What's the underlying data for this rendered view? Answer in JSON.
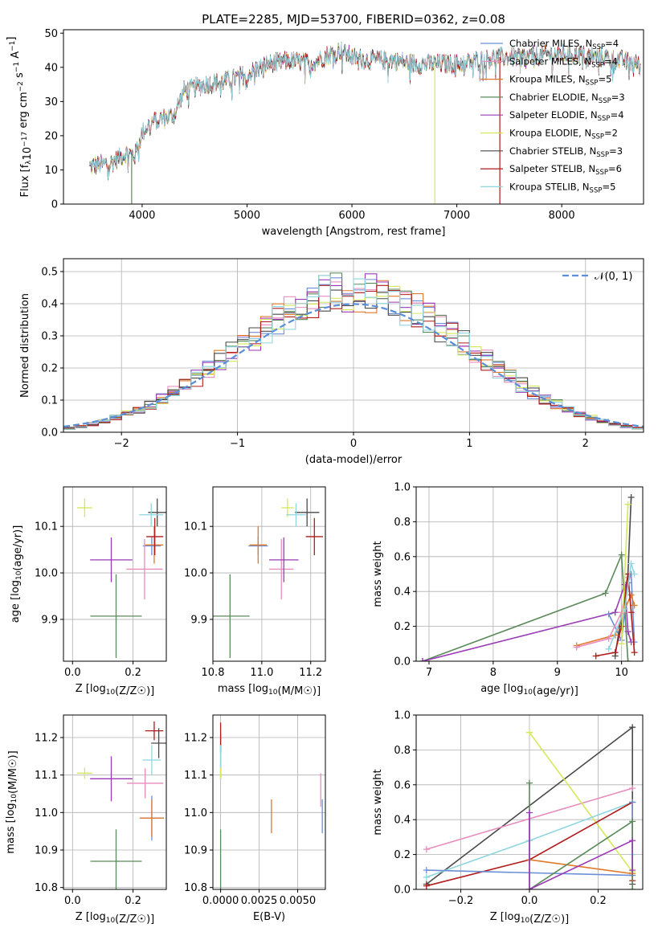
{
  "figure_title": "PLATE=2285, MJD=53700, FIBERID=0362, z=0.08",
  "colors": {
    "Chabrier MILES": "#6a8fd8",
    "Salpeter MILES": "#e88cbe",
    "Kroupa MILES": "#e0792a",
    "Chabrier ELODIE": "#5a8a5a",
    "Salpeter ELODIE": "#9a3ab8",
    "Kroupa ELODIE": "#d4e85a",
    "Chabrier STELIB": "#4a4a4a",
    "Salpeter STELIB": "#b01c1c",
    "Kroupa STELIB": "#8fd6e0"
  },
  "chart_data": [
    {
      "id": "spectrum",
      "type": "line",
      "xlabel": "wavelength [Angstrom, rest frame]",
      "ylabel": "Flux [f_λ10^-17 erg cm^-2 s^-1 A^-1]",
      "xlim": [
        3250,
        8780
      ],
      "ylim": [
        0,
        51
      ],
      "xticks": [
        4000,
        5000,
        6000,
        7000,
        8000
      ],
      "yticks": [
        0,
        10,
        20,
        30,
        40,
        50
      ],
      "legend_position": "right",
      "legend": [
        {
          "label": "Chabrier MILES, N_SSP=4",
          "color": "#6a8fd8"
        },
        {
          "label": "Salpeter MILES, N_SSP=4",
          "color": "#e88cbe"
        },
        {
          "label": "Kroupa MILES, N_SSP=5",
          "color": "#e0792a"
        },
        {
          "label": "Chabrier ELODIE, N_SSP=3",
          "color": "#5a8a5a"
        },
        {
          "label": "Salpeter ELODIE, N_SSP=4",
          "color": "#9a3ab8"
        },
        {
          "label": "Kroupa ELODIE, N_SSP=2",
          "color": "#d4e85a"
        },
        {
          "label": "Chabrier STELIB, N_SSP=3",
          "color": "#4a4a4a"
        },
        {
          "label": "Salpeter STELIB, N_SSP=6",
          "color": "#b01c1c"
        },
        {
          "label": "Kroupa STELIB, N_SSP=5",
          "color": "#8fd6e0"
        }
      ],
      "continuum": [
        [
          3500,
          11
        ],
        [
          3700,
          12
        ],
        [
          3850,
          15
        ],
        [
          3930,
          14
        ],
        [
          4000,
          21
        ],
        [
          4100,
          24
        ],
        [
          4300,
          26
        ],
        [
          4400,
          33
        ],
        [
          4600,
          35
        ],
        [
          4800,
          36
        ],
        [
          5000,
          38
        ],
        [
          5200,
          41
        ],
        [
          5400,
          42
        ],
        [
          5600,
          41
        ],
        [
          5800,
          44
        ],
        [
          5900,
          45
        ],
        [
          6000,
          43
        ],
        [
          6200,
          42
        ],
        [
          6400,
          42
        ],
        [
          6600,
          41
        ],
        [
          6800,
          41
        ],
        [
          7000,
          41
        ],
        [
          7200,
          42
        ],
        [
          7400,
          43
        ],
        [
          7600,
          43
        ],
        [
          8000,
          44
        ],
        [
          8400,
          43
        ],
        [
          8750,
          41
        ]
      ],
      "drop_lines": [
        {
          "x": 3900,
          "color": "#5a8a5a"
        },
        {
          "x": 6790,
          "color": "#d4e85a"
        },
        {
          "x": 7410,
          "color": "#b01c1c"
        }
      ]
    },
    {
      "id": "residuals",
      "type": "histogram",
      "xlabel": "(data-model)/error",
      "ylabel": "Normed distribution",
      "xlim": [
        -2.5,
        2.5
      ],
      "ylim": [
        0,
        0.54
      ],
      "xticks": [
        -2,
        -1,
        0,
        1,
        2
      ],
      "yticks": [
        0.0,
        0.1,
        0.2,
        0.3,
        0.4,
        0.5
      ],
      "legend_position": "top-right",
      "legend_label": "𝒩(0, 1)",
      "normal_curve_color": "#5b8ed8",
      "bin_width": 0.1
    },
    {
      "id": "age_vs_Z",
      "type": "errorbar",
      "xlabel": "Z [log10(Z/Z☉)]",
      "ylabel": "age  [log10(age/yr)]",
      "xlim": [
        -0.03,
        0.31
      ],
      "ylim": [
        9.81,
        10.185
      ],
      "xticks": [
        0.0,
        0.2
      ],
      "yticks": [
        9.9,
        10.0,
        10.1
      ],
      "points": [
        {
          "model": "Chabrier MILES",
          "x": 0.262,
          "xerr": 0.03,
          "y": 10.058,
          "yerr": 0.02
        },
        {
          "model": "Salpeter MILES",
          "x": 0.238,
          "xerr": 0.06,
          "y": 10.008,
          "yerr": 0.065
        },
        {
          "model": "Kroupa MILES",
          "x": 0.27,
          "xerr": 0.03,
          "y": 10.06,
          "yerr": 0.04
        },
        {
          "model": "Chabrier ELODIE",
          "x": 0.144,
          "xerr": 0.085,
          "y": 9.907,
          "yerr": 0.09
        },
        {
          "model": "Salpeter ELODIE",
          "x": 0.128,
          "xerr": 0.07,
          "y": 10.028,
          "yerr": 0.048
        },
        {
          "model": "Kroupa ELODIE",
          "x": 0.04,
          "xerr": 0.025,
          "y": 10.14,
          "yerr": 0.02
        },
        {
          "model": "Chabrier STELIB",
          "x": 0.28,
          "xerr": 0.03,
          "y": 10.13,
          "yerr": 0.03
        },
        {
          "model": "Salpeter STELIB",
          "x": 0.272,
          "xerr": 0.028,
          "y": 10.078,
          "yerr": 0.04
        },
        {
          "model": "Kroupa STELIB",
          "x": 0.26,
          "xerr": 0.04,
          "y": 10.125,
          "yerr": 0.025
        }
      ]
    },
    {
      "id": "age_vs_mass",
      "type": "errorbar",
      "xlabel": "mass [log10(M/M☉)]",
      "ylabel": "",
      "xlim": [
        10.8,
        11.26
      ],
      "ylim": [
        9.81,
        10.185
      ],
      "xticks": [
        10.8,
        11.0,
        11.2
      ],
      "yticks": [
        9.9,
        10.0,
        10.1
      ],
      "points": [
        {
          "model": "Chabrier MILES",
          "x": 10.985,
          "xerr": 0.04,
          "y": 10.058,
          "yerr": 0.02
        },
        {
          "model": "Salpeter MILES",
          "x": 11.08,
          "xerr": 0.05,
          "y": 10.008,
          "yerr": 0.065
        },
        {
          "model": "Kroupa MILES",
          "x": 10.985,
          "xerr": 0.035,
          "y": 10.06,
          "yerr": 0.04
        },
        {
          "model": "Chabrier ELODIE",
          "x": 10.87,
          "xerr": 0.08,
          "y": 9.907,
          "yerr": 0.09
        },
        {
          "model": "Salpeter ELODIE",
          "x": 11.09,
          "xerr": 0.06,
          "y": 10.028,
          "yerr": 0.048
        },
        {
          "model": "Kroupa ELODIE",
          "x": 11.105,
          "xerr": 0.025,
          "y": 10.14,
          "yerr": 0.02
        },
        {
          "model": "Chabrier STELIB",
          "x": 11.185,
          "xerr": 0.05,
          "y": 10.13,
          "yerr": 0.03
        },
        {
          "model": "Salpeter STELIB",
          "x": 11.215,
          "xerr": 0.035,
          "y": 10.078,
          "yerr": 0.04
        },
        {
          "model": "Kroupa STELIB",
          "x": 11.14,
          "xerr": 0.04,
          "y": 10.125,
          "yerr": 0.025
        }
      ]
    },
    {
      "id": "weight_vs_age",
      "type": "line",
      "xlabel": "age  [log10(age/yr)]",
      "ylabel": "mass weight",
      "xlim": [
        6.8,
        10.33
      ],
      "ylim": [
        0,
        1
      ],
      "xticks": [
        7,
        8,
        9,
        10
      ],
      "yticks": [
        0.0,
        0.2,
        0.4,
        0.6,
        0.8,
        1.0
      ],
      "series": [
        {
          "model": "Chabrier ELODIE",
          "x": [
            6.9,
            9.75,
            10.0,
            10.1
          ],
          "y": [
            0.0,
            0.39,
            0.61,
            0.0
          ]
        },
        {
          "model": "Salpeter ELODIE",
          "x": [
            6.9,
            9.9,
            10.05,
            10.1,
            10.15
          ],
          "y": [
            0.0,
            0.28,
            0.44,
            0.17,
            0.11
          ]
        },
        {
          "model": "Chabrier MILES",
          "x": [
            9.8,
            10.0,
            10.1,
            10.15,
            10.2
          ],
          "y": [
            0.27,
            0.12,
            0.45,
            0.5,
            0.11
          ]
        },
        {
          "model": "Chabrier STELIB",
          "x": [
            9.9,
            10.1,
            10.15
          ],
          "y": [
            0.03,
            0.5,
            0.94
          ]
        },
        {
          "model": "Kroupa MILES",
          "x": [
            9.3,
            9.9,
            10.05,
            10.15,
            10.2
          ],
          "y": [
            0.09,
            0.15,
            0.3,
            0.38,
            0.32
          ]
        },
        {
          "model": "Salpeter MILES",
          "x": [
            9.3,
            9.8,
            10.0,
            10.1
          ],
          "y": [
            0.08,
            0.13,
            0.28,
            0.48
          ]
        },
        {
          "model": "Salpeter STELIB",
          "x": [
            9.6,
            9.9,
            10.0,
            10.1,
            10.15,
            10.2
          ],
          "y": [
            0.03,
            0.05,
            0.2,
            0.5,
            0.28,
            0.05
          ]
        },
        {
          "model": "Kroupa STELIB",
          "x": [
            9.8,
            10.05,
            10.15,
            10.2
          ],
          "y": [
            0.07,
            0.3,
            0.56,
            0.5
          ]
        },
        {
          "model": "Kroupa ELODIE",
          "x": [
            10.0,
            10.1
          ],
          "y": [
            0.1,
            0.9
          ]
        }
      ]
    },
    {
      "id": "mass_vs_Z",
      "type": "errorbar",
      "xlabel": "Z [log10(Z/Z☉)]",
      "ylabel": "mass [log10(M/M☉)]",
      "xlim": [
        -0.03,
        0.31
      ],
      "ylim": [
        10.795,
        11.26
      ],
      "xticks": [
        0.0,
        0.2
      ],
      "yticks": [
        10.8,
        10.9,
        11.0,
        11.1,
        11.2
      ],
      "points": [
        {
          "model": "Chabrier MILES",
          "x": 0.262,
          "xerr": 0.04,
          "y": 10.985,
          "yerr": 0.06
        },
        {
          "model": "Salpeter MILES",
          "x": 0.24,
          "xerr": 0.06,
          "y": 11.078,
          "yerr": 0.04
        },
        {
          "model": "Kroupa MILES",
          "x": 0.262,
          "xerr": 0.04,
          "y": 10.985,
          "yerr": 0.05
        },
        {
          "model": "Chabrier ELODIE",
          "x": 0.144,
          "xerr": 0.085,
          "y": 10.87,
          "yerr": 0.085
        },
        {
          "model": "Salpeter ELODIE",
          "x": 0.128,
          "xerr": 0.07,
          "y": 11.09,
          "yerr": 0.06
        },
        {
          "model": "Kroupa ELODIE",
          "x": 0.04,
          "xerr": 0.025,
          "y": 11.105,
          "yerr": 0.015
        },
        {
          "model": "Chabrier STELIB",
          "x": 0.285,
          "xerr": 0.025,
          "y": 11.185,
          "yerr": 0.04
        },
        {
          "model": "Salpeter STELIB",
          "x": 0.27,
          "xerr": 0.03,
          "y": 11.218,
          "yerr": 0.025
        },
        {
          "model": "Kroupa STELIB",
          "x": 0.262,
          "xerr": 0.03,
          "y": 11.14,
          "yerr": 0.04
        }
      ]
    },
    {
      "id": "mass_vs_EBV",
      "type": "errorbar",
      "xlabel": "E(B-V)",
      "ylabel": "",
      "xlim": [
        -0.0005,
        0.0068
      ],
      "ylim": [
        10.795,
        11.26
      ],
      "xticks": [
        0.0,
        0.0025,
        0.005
      ],
      "xticklabels": [
        "0.0000",
        "0.0025",
        "0.0050"
      ],
      "yticks": [
        10.8,
        10.9,
        11.0,
        11.1,
        11.2
      ],
      "points": [
        {
          "model": "Chabrier ELODIE",
          "x": 0.0,
          "xerr": 0.0,
          "y": 10.87,
          "yerr": 0.085
        },
        {
          "model": "Salpeter ELODIE",
          "x": 0.0,
          "xerr": 0.0,
          "y": 11.15,
          "yerr": 0.06
        },
        {
          "model": "Salpeter STELIB",
          "x": 0.0,
          "xerr": 0.0,
          "y": 11.2,
          "yerr": 0.04
        },
        {
          "model": "Kroupa STELIB",
          "x": 0.0,
          "xerr": 0.0,
          "y": 11.14,
          "yerr": 0.04
        },
        {
          "model": "Kroupa ELODIE",
          "x": 0.0,
          "xerr": 0.0,
          "y": 11.105,
          "yerr": 0.015
        },
        {
          "model": "Kroupa MILES",
          "x": 0.0033,
          "xerr": 0.0,
          "y": 10.99,
          "yerr": 0.045
        },
        {
          "model": "Salpeter MILES",
          "x": 0.0065,
          "xerr": 0.0,
          "y": 11.06,
          "yerr": 0.045
        },
        {
          "model": "Chabrier MILES",
          "x": 0.0066,
          "xerr": 0.0,
          "y": 10.99,
          "yerr": 0.045
        }
      ]
    },
    {
      "id": "weight_vs_Z",
      "type": "line",
      "xlabel": "Z [log10(Z/Z☉)]",
      "ylabel": "mass weight",
      "xlim": [
        -0.33,
        0.33
      ],
      "ylim": [
        0,
        1
      ],
      "xticks": [
        -0.2,
        0.0,
        0.2
      ],
      "yticks": [
        0.0,
        0.2,
        0.4,
        0.6,
        0.8,
        1.0
      ],
      "series": [
        {
          "model": "Chabrier STELIB",
          "x": [
            -0.3,
            0.3,
            0.3
          ],
          "y": [
            0.03,
            0.93,
            0.03
          ]
        },
        {
          "model": "Salpeter MILES",
          "x": [
            -0.3,
            0.3
          ],
          "y": [
            0.23,
            0.58
          ]
        },
        {
          "model": "Kroupa ELODIE",
          "x": [
            0.0,
            0.3
          ],
          "y": [
            0.9,
            0.1
          ]
        },
        {
          "model": "Kroupa STELIB",
          "x": [
            -0.3,
            0.0,
            0.3,
            0.3
          ],
          "y": [
            0.07,
            0.28,
            0.5,
            0.2
          ]
        },
        {
          "model": "Salpeter STELIB",
          "x": [
            -0.3,
            0.0,
            0.3,
            0.3
          ],
          "y": [
            0.02,
            0.17,
            0.5,
            0.05
          ]
        },
        {
          "model": "Chabrier MILES",
          "x": [
            -0.3,
            0.3,
            0.3
          ],
          "y": [
            0.11,
            0.08,
            0.5
          ]
        },
        {
          "model": "Kroupa MILES",
          "x": [
            0.0,
            0.3
          ],
          "y": [
            0.17,
            0.09
          ]
        },
        {
          "model": "Chabrier ELODIE",
          "x": [
            0.0,
            0.0,
            0.3,
            0.3
          ],
          "y": [
            0.61,
            0.0,
            0.39,
            0.0
          ]
        },
        {
          "model": "Salpeter ELODIE",
          "x": [
            0.0,
            0.0,
            0.3,
            0.3
          ],
          "y": [
            0.44,
            0.0,
            0.28,
            0.11
          ]
        }
      ]
    }
  ]
}
